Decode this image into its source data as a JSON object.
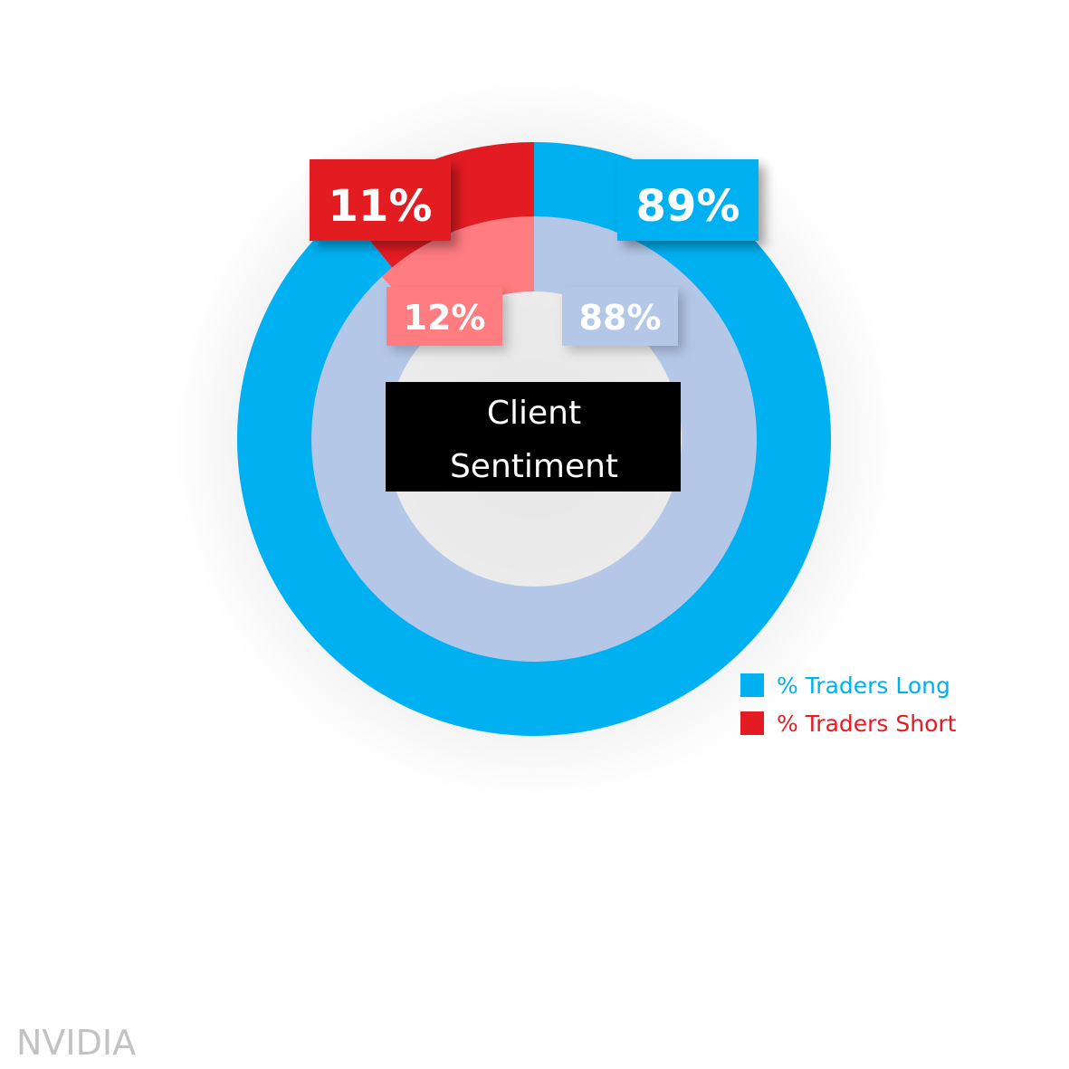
{
  "chart_data": {
    "type": "pie",
    "rings": [
      {
        "slices": [
          {
            "label": "% Traders Long",
            "value": 89,
            "display": "89%"
          },
          {
            "label": "% Traders Short",
            "value": 11,
            "display": "11%"
          }
        ]
      },
      {
        "slices": [
          {
            "label": "% Traders Long",
            "value": 88,
            "display": "88%"
          },
          {
            "label": "% Traders Short",
            "value": 12,
            "display": "12%"
          }
        ]
      }
    ],
    "center_label": [
      "Client",
      "Sentiment"
    ],
    "legend": [
      {
        "label": "% Traders Long",
        "color": "#00b0f0"
      },
      {
        "label": "% Traders Short",
        "color": "#e31b23"
      }
    ],
    "legend_position": "bottom-right"
  },
  "colors": {
    "outer_long": "#00b0f0",
    "outer_short": "#e31b23",
    "inner_long": "#b4c7e7",
    "inner_short": "#ff7c80",
    "center_bg": "#000000"
  },
  "footer": {
    "text": "NVIDIA"
  }
}
